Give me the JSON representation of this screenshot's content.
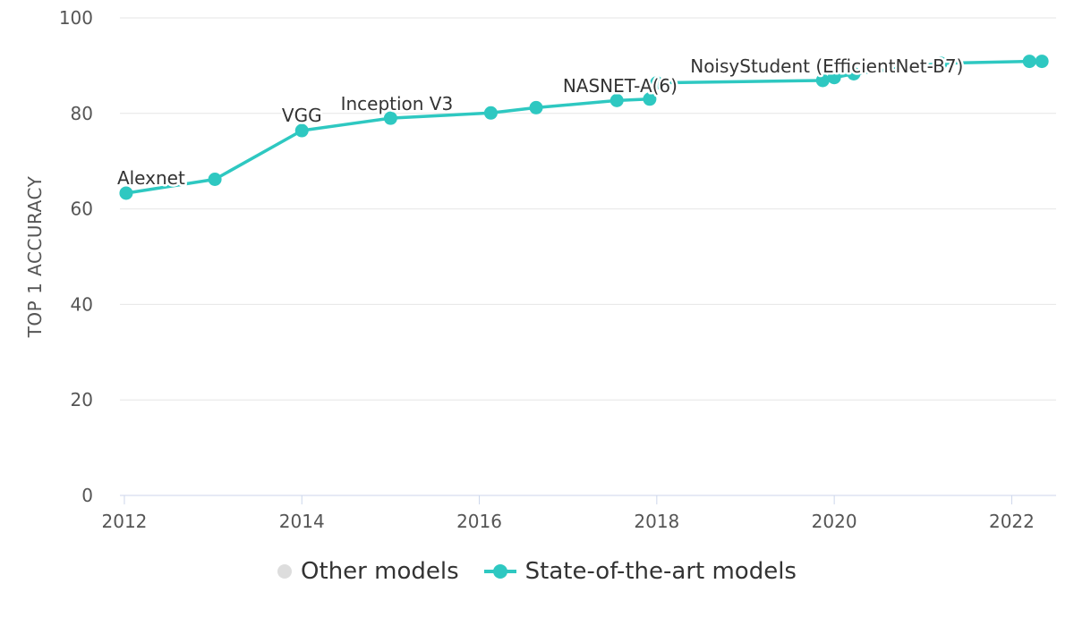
{
  "chart_data": {
    "type": "line",
    "title": "",
    "xlabel": "",
    "ylabel": "TOP 1 ACCURACY",
    "xlim": [
      2011.95,
      2022.5
    ],
    "ylim": [
      0,
      100
    ],
    "x_ticks": [
      "2012",
      "2014",
      "2016",
      "2018",
      "2020",
      "2022"
    ],
    "y_ticks": [
      "0",
      "20",
      "40",
      "60",
      "80",
      "100"
    ],
    "grid": true,
    "legend_position": "bottom-center",
    "series": [
      {
        "name": "Other models",
        "color": "#dddddd",
        "points": []
      },
      {
        "name": "State-of-the-art models",
        "color": "#2ec8c1",
        "points": [
          {
            "x": 2012.02,
            "y": 63.3,
            "label": "Alexnet"
          },
          {
            "x": 2013.02,
            "y": 66.2
          },
          {
            "x": 2014.0,
            "y": 76.4,
            "label": "VGG"
          },
          {
            "x": 2015.0,
            "y": 79.0,
            "label": "Inception V3"
          },
          {
            "x": 2016.13,
            "y": 80.1
          },
          {
            "x": 2016.64,
            "y": 81.2
          },
          {
            "x": 2017.55,
            "y": 82.7
          },
          {
            "x": 2017.92,
            "y": 83.0,
            "label": "NASNET-A(6)"
          },
          {
            "x": 2018.0,
            "y": 86.4
          },
          {
            "x": 2019.87,
            "y": 86.9,
            "label": "NoisyStudent (EfficientNet-B7)"
          },
          {
            "x": 2020.0,
            "y": 87.5
          },
          {
            "x": 2020.22,
            "y": 88.3
          },
          {
            "x": 2021.2,
            "y": 90.5
          },
          {
            "x": 2022.2,
            "y": 90.9
          },
          {
            "x": 2022.34,
            "y": 90.9
          }
        ]
      }
    ]
  },
  "legend": {
    "items": [
      {
        "label": "Other models",
        "color": "#dddddd"
      },
      {
        "label": "State-of-the-art models",
        "color": "#2ec8c1"
      }
    ]
  }
}
